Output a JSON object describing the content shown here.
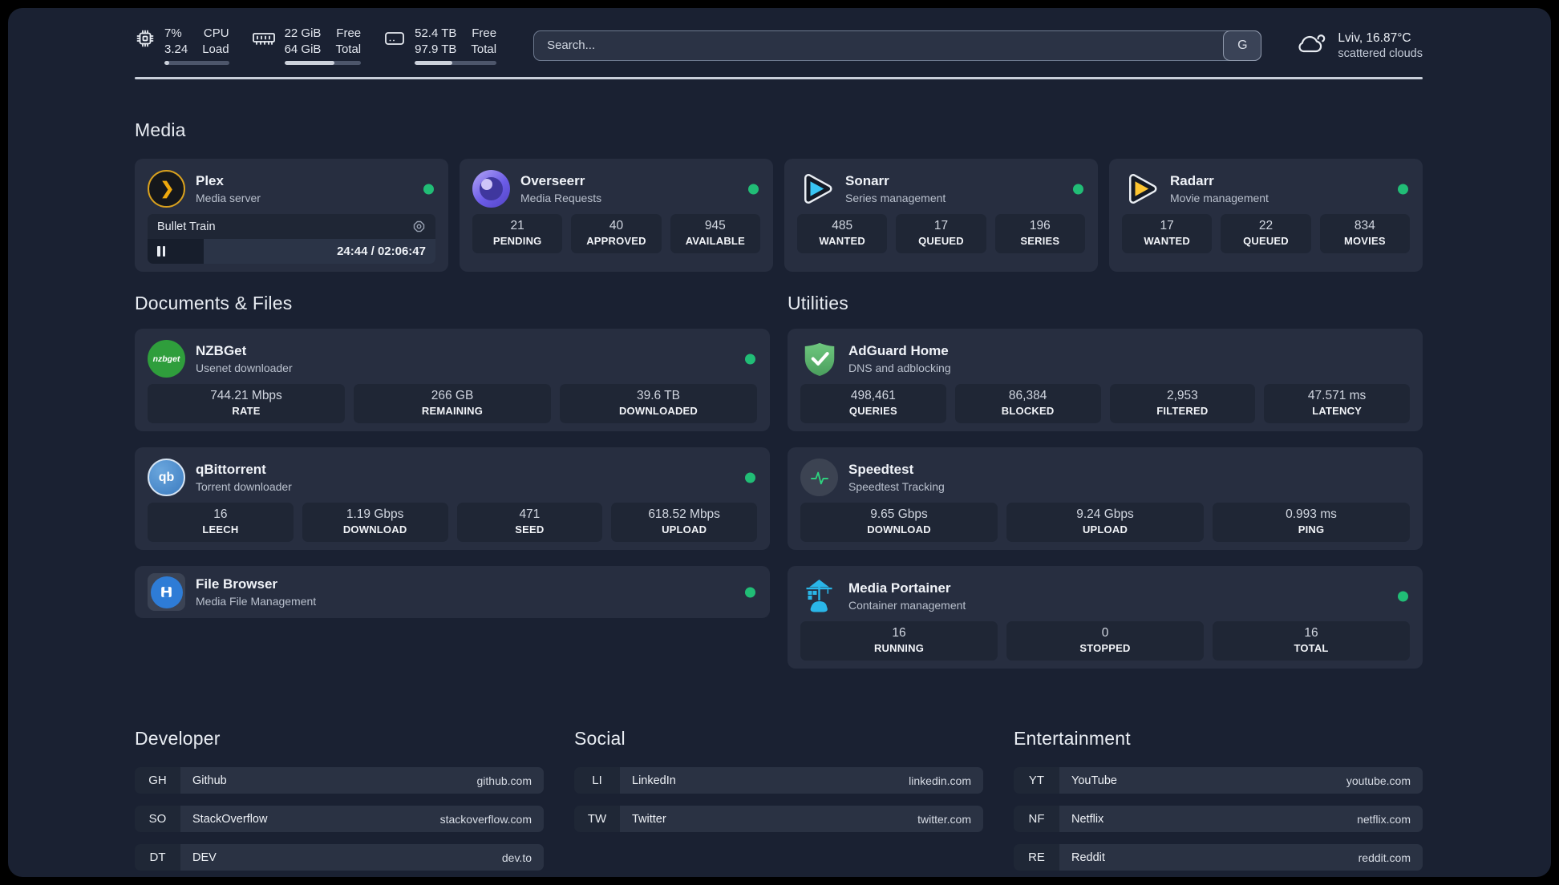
{
  "colors": {
    "status_online": "#21bd76",
    "accent_plex": "#efa90d",
    "accent_sonarr": "#38c5f3",
    "accent_radarr": "#fdc530"
  },
  "header": {
    "stats": [
      {
        "icon": "cpu-icon",
        "v1": "7%",
        "v2": "3.24",
        "l1": "CPU",
        "l2": "Load",
        "progress": 8
      },
      {
        "icon": "ram-icon",
        "v1": "22 GiB",
        "v2": "64 GiB",
        "l1": "Free",
        "l2": "Total",
        "progress": 65
      },
      {
        "icon": "disk-icon",
        "v1": "52.4 TB",
        "v2": "97.9 TB",
        "l1": "Free",
        "l2": "Total",
        "progress": 46
      }
    ],
    "search": {
      "placeholder": "Search...",
      "engine": "G"
    },
    "weather": {
      "title": "Lviv, 16.87°C",
      "subtitle": "scattered clouds"
    }
  },
  "media": {
    "title": "Media",
    "plex": {
      "name": "Plex",
      "desc": "Media server",
      "icon_text": "❯",
      "now_playing": "Bullet Train",
      "time": "24:44 / 02:06:47",
      "progress": 19.5
    },
    "overseerr": {
      "name": "Overseerr",
      "desc": "Media Requests",
      "stats": [
        {
          "value": "21",
          "label": "PENDING"
        },
        {
          "value": "40",
          "label": "APPROVED"
        },
        {
          "value": "945",
          "label": "AVAILABLE"
        }
      ]
    },
    "sonarr": {
      "name": "Sonarr",
      "desc": "Series management",
      "stats": [
        {
          "value": "485",
          "label": "WANTED"
        },
        {
          "value": "17",
          "label": "QUEUED"
        },
        {
          "value": "196",
          "label": "SERIES"
        }
      ]
    },
    "radarr": {
      "name": "Radarr",
      "desc": "Movie management",
      "stats": [
        {
          "value": "17",
          "label": "WANTED"
        },
        {
          "value": "22",
          "label": "QUEUED"
        },
        {
          "value": "834",
          "label": "MOVIES"
        }
      ]
    }
  },
  "documents": {
    "title": "Documents & Files",
    "nzbget": {
      "name": "NZBGet",
      "desc": "Usenet downloader",
      "icon_text": "nzbget",
      "stats": [
        {
          "value": "744.21 Mbps",
          "label": "RATE"
        },
        {
          "value": "266 GB",
          "label": "REMAINING"
        },
        {
          "value": "39.6 TB",
          "label": "DOWNLOADED"
        }
      ]
    },
    "qbittorrent": {
      "name": "qBittorrent",
      "desc": "Torrent downloader",
      "icon_text": "qb",
      "stats": [
        {
          "value": "16",
          "label": "LEECH"
        },
        {
          "value": "1.19 Gbps",
          "label": "DOWNLOAD"
        },
        {
          "value": "471",
          "label": "SEED"
        },
        {
          "value": "618.52 Mbps",
          "label": "UPLOAD"
        }
      ]
    },
    "filebrowser": {
      "name": "File Browser",
      "desc": "Media File Management"
    }
  },
  "utilities": {
    "title": "Utilities",
    "adguard": {
      "name": "AdGuard Home",
      "desc": "DNS and adblocking",
      "stats": [
        {
          "value": "498,461",
          "label": "QUERIES"
        },
        {
          "value": "86,384",
          "label": "BLOCKED"
        },
        {
          "value": "2,953",
          "label": "FILTERED"
        },
        {
          "value": "47.571 ms",
          "label": "LATENCY"
        }
      ]
    },
    "speedtest": {
      "name": "Speedtest",
      "desc": "Speedtest Tracking",
      "stats": [
        {
          "value": "9.65 Gbps",
          "label": "DOWNLOAD"
        },
        {
          "value": "9.24 Gbps",
          "label": "UPLOAD"
        },
        {
          "value": "0.993 ms",
          "label": "PING"
        }
      ]
    },
    "portainer": {
      "name": "Media Portainer",
      "desc": "Container management",
      "stats": [
        {
          "value": "16",
          "label": "RUNNING"
        },
        {
          "value": "0",
          "label": "STOPPED"
        },
        {
          "value": "16",
          "label": "TOTAL"
        }
      ]
    }
  },
  "bookmarks": {
    "developer": {
      "title": "Developer",
      "items": [
        {
          "abbr": "GH",
          "name": "Github",
          "url": "github.com"
        },
        {
          "abbr": "SO",
          "name": "StackOverflow",
          "url": "stackoverflow.com"
        },
        {
          "abbr": "DT",
          "name": "DEV",
          "url": "dev.to"
        }
      ]
    },
    "social": {
      "title": "Social",
      "items": [
        {
          "abbr": "LI",
          "name": "LinkedIn",
          "url": "linkedin.com"
        },
        {
          "abbr": "TW",
          "name": "Twitter",
          "url": "twitter.com"
        }
      ]
    },
    "entertainment": {
      "title": "Entertainment",
      "items": [
        {
          "abbr": "YT",
          "name": "YouTube",
          "url": "youtube.com"
        },
        {
          "abbr": "NF",
          "name": "Netflix",
          "url": "netflix.com"
        },
        {
          "abbr": "RE",
          "name": "Reddit",
          "url": "reddit.com"
        }
      ]
    }
  }
}
